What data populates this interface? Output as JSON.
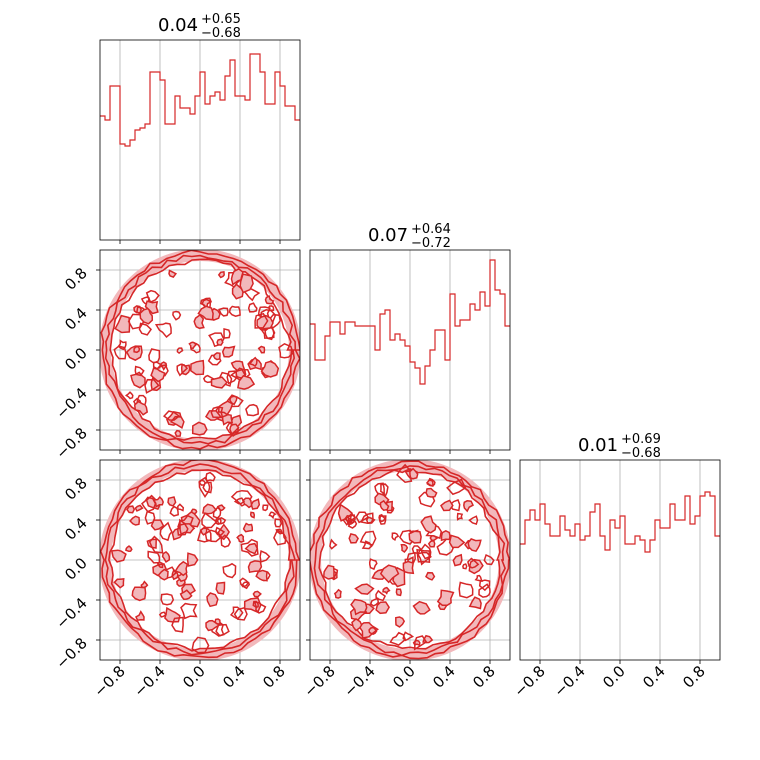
{
  "colors": {
    "line": "#d62728",
    "fill": "#f2b8bb",
    "grid": "#b0b0b0",
    "frame": "#000000"
  },
  "chart_data": {
    "type": "corner",
    "axis_range": [
      -1,
      1
    ],
    "ticks": [
      -0.8,
      -0.4,
      0.0,
      0.4,
      0.8
    ],
    "tick_labels": [
      "−0.8",
      "−0.4",
      "0.0",
      "0.4",
      "0.8"
    ],
    "grid": true,
    "histogram_bins": 40,
    "titles": [
      {
        "main": "0.04",
        "plus": "+0.65",
        "minus": "−0.68"
      },
      {
        "main": "0.07",
        "plus": "+0.64",
        "minus": "−0.72"
      },
      {
        "main": "0.01",
        "plus": "+0.69",
        "minus": "−0.68"
      }
    ],
    "histograms": [
      {
        "values": [
          0.62,
          0.6,
          0.77,
          0.77,
          0.48,
          0.47,
          0.5,
          0.55,
          0.56,
          0.58,
          0.84,
          0.84,
          0.8,
          0.58,
          0.58,
          0.72,
          0.66,
          0.66,
          0.63,
          0.72,
          0.84,
          0.68,
          0.72,
          0.74,
          0.7,
          0.82,
          0.9,
          0.72,
          0.72,
          0.7,
          0.93,
          0.93,
          0.84,
          0.68,
          0.68,
          0.84,
          0.77,
          0.67,
          0.67,
          0.6
        ]
      },
      {
        "values": [
          0.63,
          0.45,
          0.45,
          0.57,
          0.64,
          0.64,
          0.58,
          0.64,
          0.64,
          0.62,
          0.62,
          0.62,
          0.62,
          0.5,
          0.68,
          0.7,
          0.55,
          0.58,
          0.55,
          0.52,
          0.44,
          0.41,
          0.33,
          0.42,
          0.5,
          0.6,
          0.6,
          0.45,
          0.78,
          0.62,
          0.65,
          0.65,
          0.73,
          0.7,
          0.79,
          0.72,
          0.95,
          0.8,
          0.78,
          0.62
        ]
      },
      {
        "values": [
          0.58,
          0.7,
          0.75,
          0.7,
          0.78,
          0.68,
          0.62,
          0.62,
          0.72,
          0.65,
          0.62,
          0.68,
          0.6,
          0.62,
          0.74,
          0.78,
          0.62,
          0.55,
          0.7,
          0.66,
          0.72,
          0.58,
          0.58,
          0.62,
          0.6,
          0.54,
          0.6,
          0.7,
          0.66,
          0.66,
          0.78,
          0.7,
          0.7,
          0.82,
          0.68,
          0.72,
          0.82,
          0.84,
          0.82,
          0.62
        ]
      }
    ],
    "scatter_panels": [
      {
        "x_param": 1,
        "y_param": 2,
        "distribution": "uniform-disk",
        "radius": 1.0
      },
      {
        "x_param": 1,
        "y_param": 3,
        "distribution": "uniform-disk",
        "radius": 1.0
      },
      {
        "x_param": 2,
        "y_param": 3,
        "distribution": "uniform-disk",
        "radius": 1.0
      }
    ]
  }
}
